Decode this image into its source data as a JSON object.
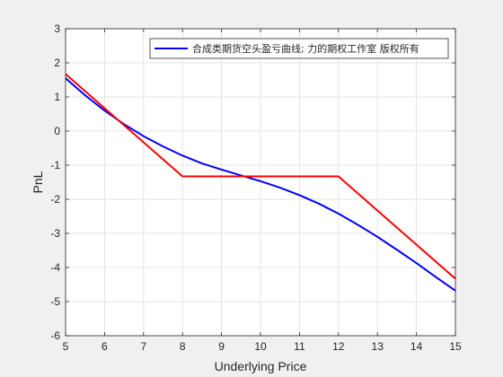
{
  "chart_data": {
    "type": "line",
    "xlabel": "Underlying Price",
    "ylabel": "PnL",
    "xlim": [
      5,
      15
    ],
    "ylim": [
      -6,
      3
    ],
    "xticks": [
      5,
      6,
      7,
      8,
      9,
      10,
      11,
      12,
      13,
      14,
      15
    ],
    "yticks": [
      -6,
      -5,
      -4,
      -3,
      -2,
      -1,
      0,
      1,
      2,
      3
    ],
    "grid": true,
    "legend_position": "top-right",
    "series": [
      {
        "name": "合成类期货空头盈亏曲线; 力的期权工作室 版权所有",
        "color": "#0000ff",
        "x": [
          5,
          5.5,
          6,
          6.5,
          7,
          7.5,
          8,
          8.5,
          9,
          9.5,
          10,
          10.5,
          11,
          11.5,
          12,
          12.5,
          13,
          13.5,
          14,
          14.5,
          15
        ],
        "y": [
          1.55,
          1.05,
          0.6,
          0.2,
          -0.15,
          -0.45,
          -0.72,
          -0.95,
          -1.13,
          -1.3,
          -1.47,
          -1.66,
          -1.88,
          -2.13,
          -2.42,
          -2.75,
          -3.1,
          -3.48,
          -3.87,
          -4.28,
          -4.68
        ]
      },
      {
        "name": "",
        "color": "#ff0000",
        "x": [
          5,
          8,
          12,
          15
        ],
        "y": [
          1.67,
          -1.33,
          -1.33,
          -4.33
        ]
      }
    ]
  }
}
